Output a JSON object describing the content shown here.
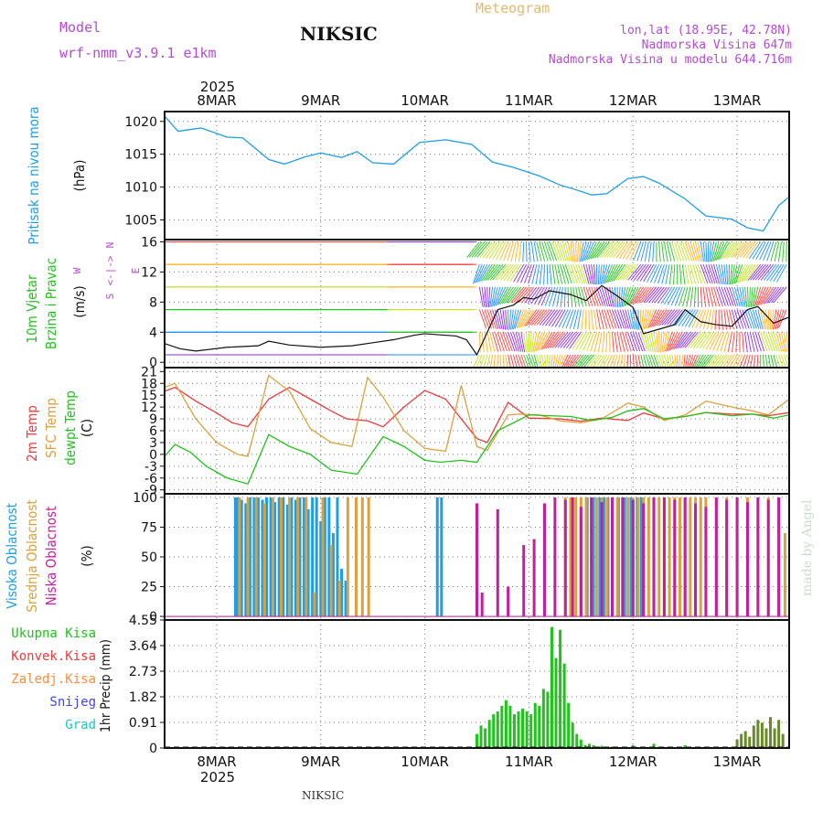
{
  "header": {
    "model_label": "Model",
    "model_name": "wrf-nmm_v3.9.1 e1km",
    "station": "NIKSIC",
    "meteogram": "Meteogram",
    "lonlat": "lon,lat (18.95E, 42.78N)",
    "altitude": "Nadmorska Visina 647m",
    "altitude_model": "Nadmorska Visina u modelu 644.716m"
  },
  "footer": {
    "station": "NIKSIC",
    "credit": "made by Angel"
  },
  "colors": {
    "pressure": "#1e9ee8",
    "t2m": "#ee3b3b",
    "tsfc": "#dca03c",
    "dewpoint": "#22c21e",
    "high_cloud": "#1e9ee8",
    "mid_cloud": "#dca03c",
    "low_cloud": "#c21e9e",
    "total_precip": "#22c21e",
    "conv_precip": "#ee3b3b",
    "frozen_precip": "#ff8c3c",
    "snow": "#4444ee",
    "hail": "#22c2c2",
    "purple_text": "#b44ad6"
  },
  "time_axis": {
    "year": "2025",
    "labels": [
      "8MAR",
      "9MAR",
      "10MAR",
      "11MAR",
      "12MAR",
      "13MAR"
    ],
    "label_day_offsets": [
      0.5,
      1.5,
      2.5,
      3.5,
      4.5,
      5.5
    ],
    "day_range": [
      0,
      6.0
    ]
  },
  "chart_data": [
    {
      "id": "pressure",
      "type": "line",
      "ylabels": [
        "Pritisak na nivou mora",
        "(hPa)"
      ],
      "ylim": [
        1002,
        1021.5
      ],
      "yticks": [
        1005,
        1010,
        1015,
        1020
      ],
      "grid": true,
      "series": [
        {
          "color_key": "pressure",
          "x": [
            0,
            0.13,
            0.35,
            0.6,
            0.75,
            1.0,
            1.15,
            1.35,
            1.5,
            1.7,
            1.85,
            2.0,
            2.2,
            2.45,
            2.7,
            2.95,
            3.15,
            3.35,
            3.6,
            3.8,
            3.95,
            4.1,
            4.25,
            4.45,
            4.6,
            4.75,
            5.0,
            5.2,
            5.45,
            5.6,
            5.75,
            5.9,
            6.0
          ],
          "y": [
            1020.8,
            1018.5,
            1019,
            1017.6,
            1017.5,
            1014.2,
            1013.5,
            1014.6,
            1015.2,
            1014.5,
            1015.4,
            1013.7,
            1013.5,
            1016.8,
            1017.2,
            1016.5,
            1013.8,
            1013,
            1011.7,
            1010.3,
            1009.6,
            1008.8,
            1009,
            1011.3,
            1011.6,
            1010.6,
            1008.2,
            1005.6,
            1005.1,
            1003.8,
            1003.3,
            1007.2,
            1008.5
          ]
        }
      ]
    },
    {
      "id": "wind",
      "type": "line",
      "ylabels": [
        "10m Vjetar",
        "Brzina i Pravac",
        "(m/s)"
      ],
      "compass_glyphs": [
        "N",
        "W",
        "E",
        "S",
        "<-|->"
      ],
      "ylim": [
        -0.7,
        16.3
      ],
      "yticks": [
        0,
        4,
        8,
        12,
        16
      ],
      "grid": true,
      "series": [
        {
          "name": "speed",
          "x": [
            0,
            0.15,
            0.3,
            0.6,
            0.9,
            1.0,
            1.2,
            1.5,
            1.8,
            2.0,
            2.2,
            2.4,
            2.5,
            2.8,
            2.9,
            3.0,
            3.2,
            3.35,
            3.45,
            3.55,
            3.7,
            3.9,
            4.05,
            4.2,
            4.35,
            4.5,
            4.6,
            4.75,
            4.9,
            5.0,
            5.15,
            5.3,
            5.45,
            5.6,
            5.7,
            5.85,
            6.0
          ],
          "y": [
            2.5,
            1.8,
            1.5,
            2.0,
            2.2,
            2.8,
            2.3,
            2.0,
            2.2,
            2.6,
            3.0,
            3.6,
            3.8,
            3.5,
            3.0,
            1.0,
            7.0,
            7.6,
            8.6,
            8.4,
            9.5,
            9.0,
            8.2,
            10.2,
            8.8,
            7.3,
            3.8,
            4.4,
            5.0,
            7.0,
            5.4,
            5.0,
            4.8,
            7.0,
            7.4,
            5.2,
            6.0
          ]
        }
      ]
    },
    {
      "id": "temperature",
      "type": "line",
      "ylabels": [
        "2m Temp",
        "SFC Temp",
        "dewpt Temp",
        "(C)"
      ],
      "ylim": [
        -10,
        22
      ],
      "yticks": [
        -9,
        -6,
        -3,
        0,
        3,
        6,
        9,
        12,
        15,
        18,
        21
      ],
      "grid": true,
      "series": [
        {
          "name": "2m Temp",
          "color_key": "t2m",
          "x": [
            0,
            0.1,
            0.3,
            0.5,
            0.65,
            0.8,
            1.0,
            1.2,
            1.4,
            1.6,
            1.75,
            1.95,
            2.1,
            2.3,
            2.5,
            2.7,
            2.85,
            3.0,
            3.1,
            3.3,
            3.5,
            3.8,
            4.0,
            4.2,
            4.45,
            4.6,
            4.8,
            5.0,
            5.2,
            5.45,
            5.65,
            5.8,
            6.0
          ],
          "y": [
            16,
            17,
            13.5,
            10.5,
            8,
            7,
            14,
            17,
            14,
            11,
            9,
            8.5,
            7,
            12,
            16.2,
            14,
            9,
            4,
            3,
            13.2,
            9.2,
            9,
            8.4,
            9.2,
            8.6,
            10.5,
            9,
            9.6,
            10.6,
            10.2,
            10.2,
            9.8,
            10.6
          ]
        },
        {
          "name": "SFC Temp",
          "color_key": "tsfc",
          "x": [
            0,
            0.1,
            0.3,
            0.5,
            0.7,
            0.8,
            1.0,
            1.2,
            1.4,
            1.6,
            1.8,
            1.95,
            2.1,
            2.3,
            2.5,
            2.7,
            2.85,
            3.0,
            3.1,
            3.3,
            3.4,
            3.6,
            3.8,
            4.0,
            4.2,
            4.45,
            4.6,
            4.8,
            5.0,
            5.2,
            5.45,
            5.65,
            5.8,
            6.0
          ],
          "y": [
            17,
            18,
            9,
            3,
            0,
            -0.5,
            20,
            16,
            6.5,
            3,
            2,
            19.5,
            14.5,
            6,
            1.5,
            0.8,
            17.5,
            2,
            1,
            10,
            10.2,
            10,
            8.5,
            8,
            9,
            13,
            12,
            8.6,
            10,
            13.5,
            12,
            11,
            10,
            14
          ]
        },
        {
          "name": "dewpt Temp",
          "color_key": "dewpoint",
          "x": [
            0,
            0.1,
            0.25,
            0.4,
            0.6,
            0.8,
            1.0,
            1.2,
            1.4,
            1.6,
            1.85,
            2.1,
            2.3,
            2.5,
            2.65,
            2.85,
            3.0,
            3.2,
            3.5,
            3.9,
            4.1,
            4.3,
            4.45,
            4.6,
            4.8,
            5.0,
            5.2,
            5.45,
            5.65,
            5.85,
            6.0
          ],
          "y": [
            -0.5,
            2.5,
            0.5,
            -3,
            -6,
            -7.5,
            5,
            2,
            0,
            -4,
            -5,
            4.5,
            2,
            -1.5,
            -2,
            -1.5,
            -2,
            6,
            10,
            9.6,
            8.6,
            9.4,
            11,
            11.6,
            9,
            9.6,
            10.6,
            9.8,
            10.2,
            9.2,
            10
          ]
        }
      ]
    },
    {
      "id": "cloud",
      "type": "bar",
      "ylabels": [
        "Visoka Oblacnost",
        "Srednja Oblacnost",
        "Niska Oblacnost",
        "(%)"
      ],
      "ylim": [
        -3,
        103
      ],
      "yticks": [
        0,
        25,
        50,
        75,
        100
      ],
      "grid": true,
      "series": [
        {
          "name": "Visoka Oblacnost",
          "color_key": "high_cloud",
          "x": [
            0.68,
            0.7,
            0.74,
            0.78,
            0.82,
            0.86,
            0.9,
            0.94,
            0.98,
            1.02,
            1.06,
            1.1,
            1.14,
            1.18,
            1.22,
            1.26,
            1.3,
            1.34,
            1.38,
            1.42,
            1.46,
            1.5,
            1.54,
            1.58,
            1.62,
            1.66,
            1.7,
            1.74,
            2.62,
            2.66,
            4.0,
            4.06,
            4.12,
            4.18,
            4.22,
            4.26,
            4.3,
            4.36,
            4.42,
            4.48,
            4.54,
            4.58
          ],
          "y": [
            100,
            100,
            98,
            95,
            100,
            100,
            100,
            98,
            100,
            100,
            96,
            100,
            100,
            94,
            100,
            98,
            100,
            100,
            90,
            100,
            100,
            80,
            100,
            100,
            70,
            100,
            40,
            30,
            100,
            100,
            85,
            100,
            100,
            100,
            100,
            100,
            100,
            100,
            100,
            100,
            100,
            100
          ]
        },
        {
          "name": "Srednja Oblacnost",
          "color_key": "mid_cloud",
          "x": [
            0.72,
            0.8,
            0.88,
            0.96,
            1.04,
            1.12,
            1.2,
            1.28,
            1.36,
            1.44,
            1.52,
            1.6,
            1.68,
            1.76,
            1.84,
            1.9,
            1.96,
            3.85,
            3.9,
            3.95,
            4.0,
            4.05,
            4.1,
            4.15,
            4.2,
            4.25,
            4.3,
            4.35,
            4.4,
            4.45,
            4.5,
            4.55,
            4.6,
            4.65,
            4.7,
            4.75,
            4.8,
            4.85,
            4.9,
            4.95,
            5.0,
            5.05,
            5.1,
            5.15,
            5.2,
            5.3,
            5.4,
            5.5,
            5.6,
            5.7,
            5.8,
            5.9,
            5.96
          ],
          "y": [
            100,
            100,
            100,
            95,
            100,
            100,
            100,
            100,
            100,
            20,
            100,
            60,
            30,
            100,
            100,
            100,
            100,
            100,
            100,
            100,
            100,
            100,
            100,
            100,
            100,
            100,
            100,
            100,
            100,
            100,
            100,
            100,
            100,
            100,
            100,
            100,
            100,
            100,
            100,
            100,
            100,
            100,
            100,
            100,
            100,
            100,
            100,
            100,
            100,
            100,
            100,
            100,
            70
          ]
        },
        {
          "name": "Niska Oblacnost",
          "color_key": "low_cloud",
          "x": [
            3.0,
            3.05,
            3.2,
            3.3,
            3.45,
            3.55,
            3.65,
            3.75,
            3.85,
            3.92,
            4.0,
            4.1,
            4.2,
            4.3,
            4.4,
            4.5,
            4.6,
            4.7,
            4.8,
            4.9,
            5.0,
            5.1,
            5.2,
            5.3,
            5.4,
            5.5,
            5.6,
            5.7,
            5.8,
            5.9
          ],
          "y": [
            95,
            20,
            90,
            25,
            60,
            65,
            95,
            100,
            98,
            100,
            92,
            100,
            96,
            100,
            100,
            98,
            95,
            100,
            100,
            98,
            100,
            95,
            92,
            100,
            98,
            100,
            96,
            100,
            98,
            100
          ]
        }
      ]
    },
    {
      "id": "precip",
      "type": "bar",
      "ylabels": [
        "Ukupna Kisa",
        "Konvek.Kisa",
        "Zaledj.Kisa",
        "Snijeg",
        "Grad",
        "1hr Precip (mm)"
      ],
      "ylim": [
        0,
        4.55
      ],
      "yticks": [
        "0",
        "0.91",
        "1.82",
        "2.73",
        "3.64",
        "4.55"
      ],
      "ytick_values": [
        0,
        0.91,
        1.82,
        2.73,
        3.64,
        4.55
      ],
      "grid": true,
      "series": [
        {
          "name": "Ukupna Kisa",
          "color_key": "total_precip",
          "x": [
            3.0,
            3.04,
            3.08,
            3.12,
            3.16,
            3.2,
            3.24,
            3.28,
            3.32,
            3.36,
            3.4,
            3.44,
            3.48,
            3.52,
            3.56,
            3.6,
            3.64,
            3.68,
            3.72,
            3.76,
            3.8,
            3.84,
            3.88,
            3.92,
            3.96,
            4.0,
            4.04,
            4.08,
            4.12,
            4.2,
            4.3,
            4.5,
            4.7,
            5.0,
            5.5,
            5.54,
            5.58,
            5.62,
            5.66,
            5.7,
            5.74,
            5.78,
            5.82,
            5.86,
            5.9,
            5.94
          ],
          "y": [
            0.5,
            0.8,
            0.7,
            1.0,
            1.2,
            1.3,
            1.5,
            1.7,
            1.5,
            1.2,
            1.3,
            1.4,
            1.3,
            1.2,
            1.6,
            1.5,
            2.1,
            2.0,
            4.3,
            3.2,
            4.2,
            3.0,
            1.6,
            0.9,
            0.5,
            0.3,
            0.1,
            0.15,
            0.1,
            0.08,
            0.05,
            0.1,
            0.15,
            0.1,
            0.3,
            0.5,
            0.6,
            0.4,
            0.8,
            1.0,
            0.9,
            0.7,
            1.1,
            0.7,
            1.0,
            0.5
          ]
        }
      ]
    }
  ]
}
